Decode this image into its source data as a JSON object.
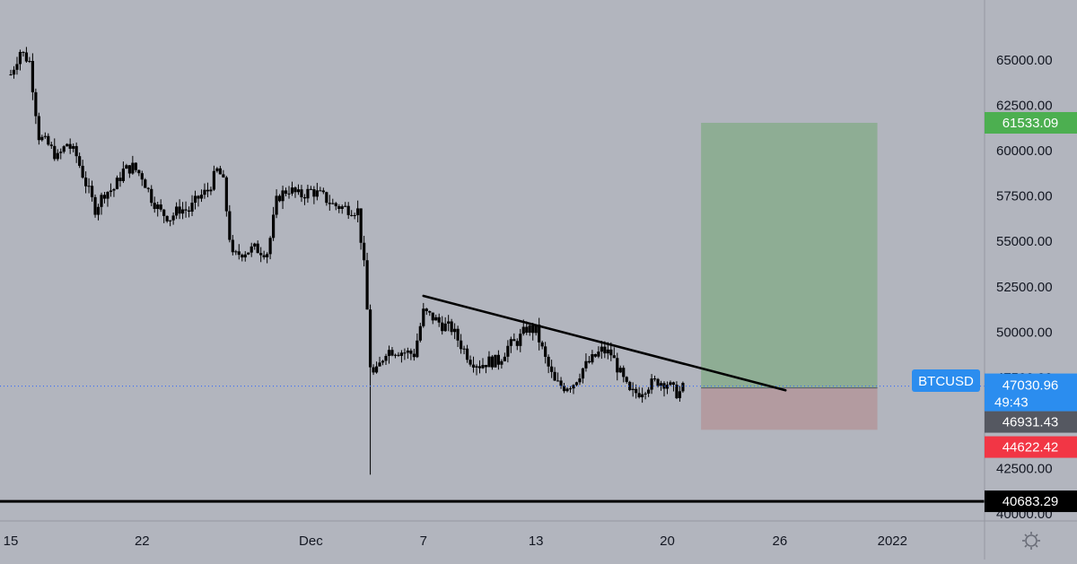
{
  "symbol": "BTCUSD",
  "chart_data": {
    "type": "candlestick",
    "title": "",
    "ylim": [
      39600,
      68300
    ],
    "price_ticks": [
      "65000.00",
      "62500.00",
      "60000.00",
      "57500.00",
      "55000.00",
      "52500.00",
      "50000.00",
      "47500.00",
      "42500.00",
      "40000.00"
    ],
    "time_ticks": [
      {
        "label": "15",
        "day": 0
      },
      {
        "label": "22",
        "day": 7
      },
      {
        "label": "Dec",
        "day": 16
      },
      {
        "label": "7",
        "day": 22
      },
      {
        "label": "13",
        "day": 28
      },
      {
        "label": "20",
        "day": 35
      },
      {
        "label": "26",
        "day": 41
      },
      {
        "label": "2022",
        "day": 47
      }
    ],
    "candle_interval_hours": 4,
    "close_path": [
      {
        "day": 0.0,
        "price": 64200
      },
      {
        "day": 0.5,
        "price": 65500
      },
      {
        "day": 1.0,
        "price": 64900
      },
      {
        "day": 1.5,
        "price": 60800
      },
      {
        "day": 2.0,
        "price": 60300
      },
      {
        "day": 2.5,
        "price": 59600
      },
      {
        "day": 3.0,
        "price": 60400
      },
      {
        "day": 3.5,
        "price": 59700
      },
      {
        "day": 4.0,
        "price": 58200
      },
      {
        "day": 4.5,
        "price": 56800
      },
      {
        "day": 5.0,
        "price": 57700
      },
      {
        "day": 5.5,
        "price": 57900
      },
      {
        "day": 6.0,
        "price": 58900
      },
      {
        "day": 6.5,
        "price": 59100
      },
      {
        "day": 7.0,
        "price": 58600
      },
      {
        "day": 7.5,
        "price": 57400
      },
      {
        "day": 8.0,
        "price": 56600
      },
      {
        "day": 8.5,
        "price": 56300
      },
      {
        "day": 9.0,
        "price": 56800
      },
      {
        "day": 9.5,
        "price": 56700
      },
      {
        "day": 10.0,
        "price": 57400
      },
      {
        "day": 10.5,
        "price": 57800
      },
      {
        "day": 11.0,
        "price": 58900
      },
      {
        "day": 11.3,
        "price": 58500
      },
      {
        "day": 11.8,
        "price": 54100
      },
      {
        "day": 12.3,
        "price": 54400
      },
      {
        "day": 13.0,
        "price": 54600
      },
      {
        "day": 13.7,
        "price": 54400
      },
      {
        "day": 14.2,
        "price": 57400
      },
      {
        "day": 14.8,
        "price": 57900
      },
      {
        "day": 15.4,
        "price": 57500
      },
      {
        "day": 16.0,
        "price": 57800
      },
      {
        "day": 16.6,
        "price": 57500
      },
      {
        "day": 17.2,
        "price": 57000
      },
      {
        "day": 18.0,
        "price": 56800
      },
      {
        "day": 18.5,
        "price": 56700
      },
      {
        "day": 18.9,
        "price": 53000
      },
      {
        "day": 19.2,
        "price": 47600
      },
      {
        "day": 19.5,
        "price": 47800
      },
      {
        "day": 20.0,
        "price": 49000
      },
      {
        "day": 20.5,
        "price": 49000
      },
      {
        "day": 21.0,
        "price": 48900
      },
      {
        "day": 21.5,
        "price": 48800
      },
      {
        "day": 22.0,
        "price": 51100
      },
      {
        "day": 22.5,
        "price": 50800
      },
      {
        "day": 23.0,
        "price": 50400
      },
      {
        "day": 23.5,
        "price": 50200
      },
      {
        "day": 24.0,
        "price": 49300
      },
      {
        "day": 24.5,
        "price": 48500
      },
      {
        "day": 25.0,
        "price": 48200
      },
      {
        "day": 25.5,
        "price": 48400
      },
      {
        "day": 26.0,
        "price": 48400
      },
      {
        "day": 26.5,
        "price": 49200
      },
      {
        "day": 27.0,
        "price": 49500
      },
      {
        "day": 27.5,
        "price": 50200
      },
      {
        "day": 28.0,
        "price": 50100
      },
      {
        "day": 28.5,
        "price": 48500
      },
      {
        "day": 29.0,
        "price": 47200
      },
      {
        "day": 29.5,
        "price": 47000
      },
      {
        "day": 30.0,
        "price": 47200
      },
      {
        "day": 30.5,
        "price": 48000
      },
      {
        "day": 31.0,
        "price": 48500
      },
      {
        "day": 31.5,
        "price": 49000
      },
      {
        "day": 32.0,
        "price": 48800
      },
      {
        "day": 32.5,
        "price": 47700
      },
      {
        "day": 33.0,
        "price": 46600
      },
      {
        "day": 33.5,
        "price": 46700
      },
      {
        "day": 34.0,
        "price": 47100
      },
      {
        "day": 34.5,
        "price": 47300
      },
      {
        "day": 35.0,
        "price": 47200
      },
      {
        "day": 35.3,
        "price": 46800
      },
      {
        "day": 35.6,
        "price": 46600
      },
      {
        "day": 35.9,
        "price": 47000
      }
    ],
    "low_wick": {
      "day": 19.2,
      "price": 42150
    },
    "current_price": 47030.96,
    "trendline": [
      {
        "day": 22.0,
        "price": 52000
      },
      {
        "day": 41.3,
        "price": 46800
      }
    ],
    "support_level": 40683.29,
    "position": {
      "day_start": 36.8,
      "day_end": 46.2,
      "entry": 46931.43,
      "target": 61533.09,
      "stop": 44622.42,
      "target_color": "#8ead94",
      "stop_color": "#b39ba0"
    }
  },
  "tags": [
    {
      "text": "61533.09",
      "price": 61533.09,
      "bg": "#4caf50",
      "fg": "#ffffff"
    },
    {
      "text": "46931.43",
      "price": 46931.43,
      "bg": "#555861",
      "fg": "#ffffff"
    },
    {
      "text": "44622.42",
      "price": 44622.42,
      "bg": "#f23645",
      "fg": "#ffffff"
    },
    {
      "text": "40683.29",
      "price": 40683.29,
      "bg": "#000000",
      "fg": "#ffffff"
    }
  ],
  "current_tag": {
    "price": "47030.96",
    "countdown": "49:43",
    "bg": "#2b8def",
    "fg": "#ffffff"
  },
  "colors": {
    "background": "#b2b5be",
    "candle": "#000000",
    "trendline": "#000000",
    "price_line": "#2962ff"
  },
  "settings_icon": "gear-icon"
}
